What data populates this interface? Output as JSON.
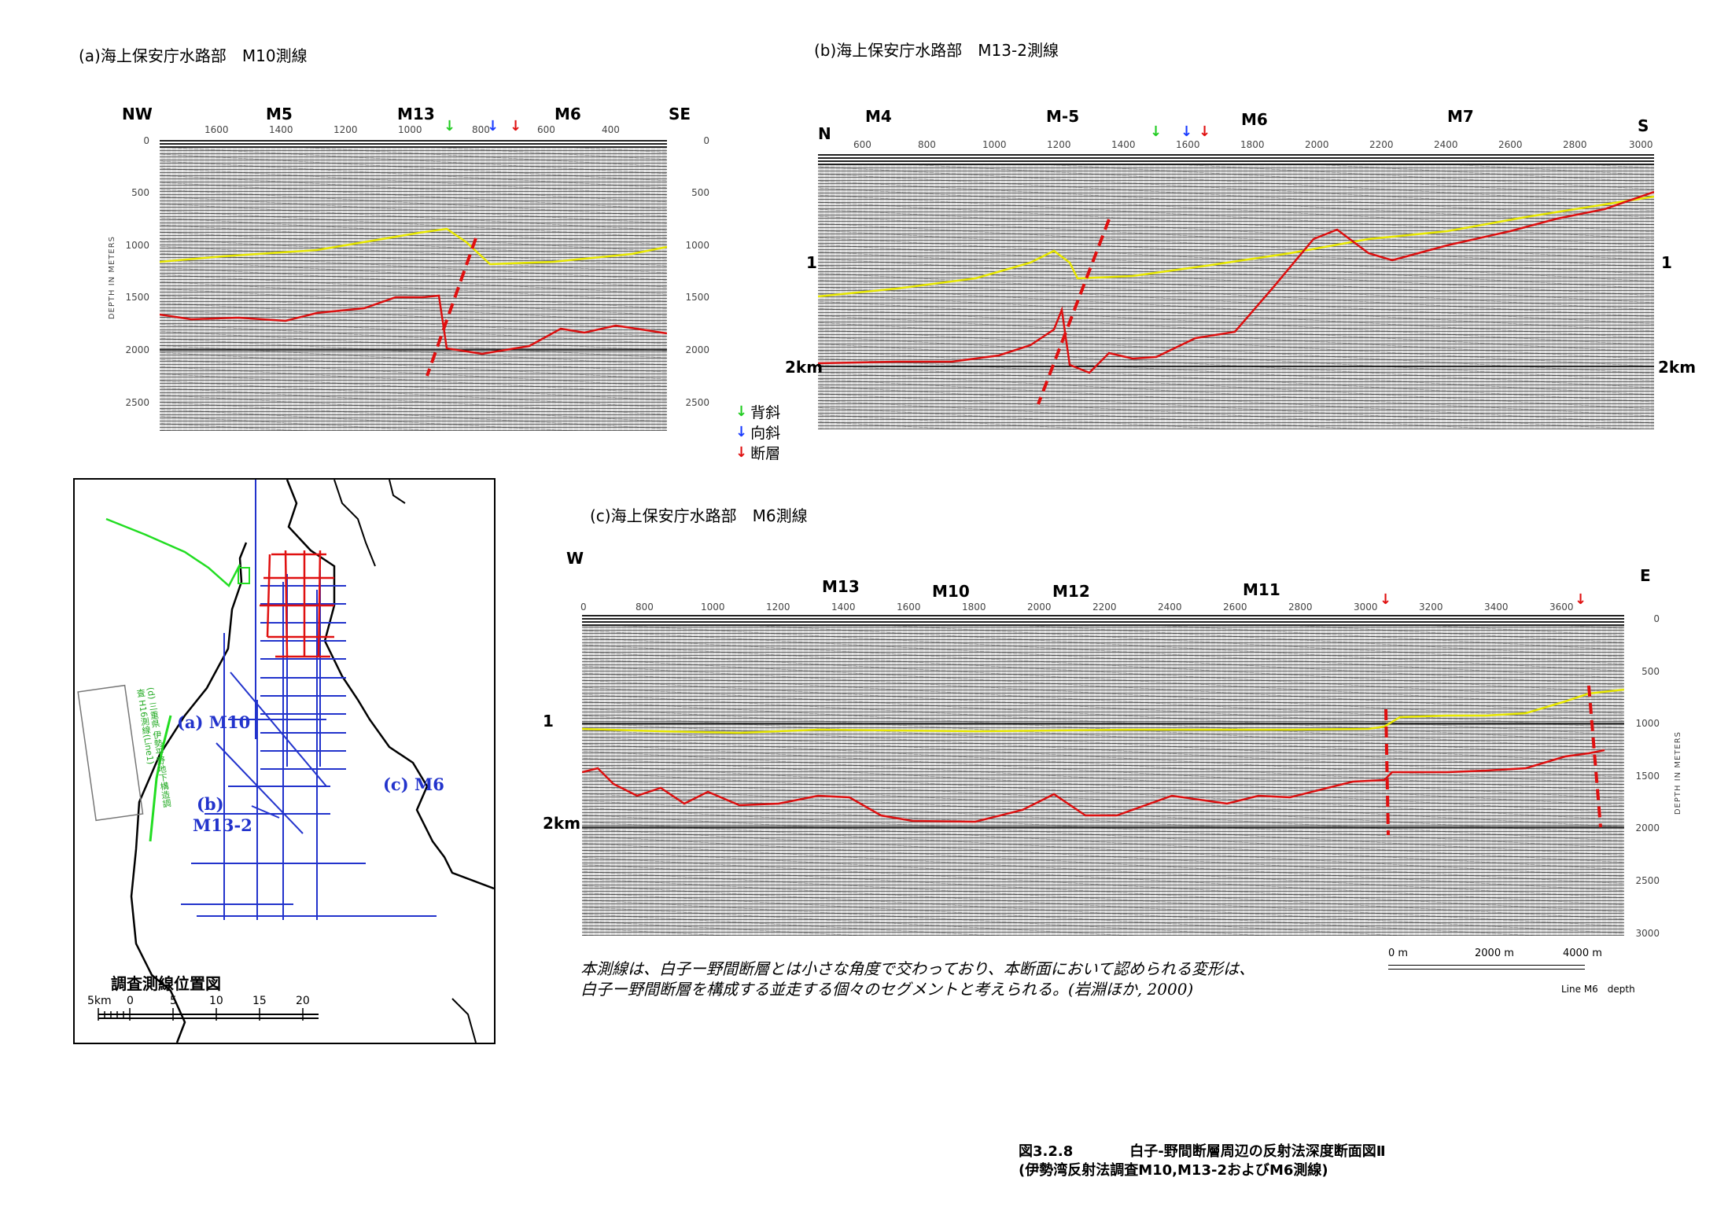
{
  "panel_a": {
    "title": "(a)海上保安庁水路部　M10測線",
    "left_dir": "NW",
    "right_dir": "SE",
    "markers": [
      "M5",
      "M13",
      "M6"
    ],
    "xticks": [
      "1600",
      "1400",
      "1200",
      "1000",
      "800",
      "600",
      "400"
    ],
    "depth_ticks": [
      "0",
      "500",
      "1000",
      "1500",
      "2000",
      "2500"
    ],
    "depth_axis_label": "DEPTH IN METERS"
  },
  "panel_b": {
    "title": "(b)海上保安庁水路部　M13-2測線",
    "left_dir": "N",
    "right_dir": "S",
    "markers": [
      "M4",
      "M-5",
      "M6",
      "M7"
    ],
    "xticks": [
      "600",
      "800",
      "1000",
      "1200",
      "1400",
      "1600",
      "1800",
      "2000",
      "2200",
      "2400",
      "2600",
      "2800",
      "3000"
    ],
    "left_label_1": "1",
    "left_label_2": "2km",
    "right_label_1": "1",
    "right_label_2": "2km"
  },
  "legend": {
    "items": [
      {
        "label": "背斜",
        "color": "#22cc22"
      },
      {
        "label": "向斜",
        "color": "#1a3cff"
      },
      {
        "label": "断層",
        "color": "#e01010"
      }
    ]
  },
  "map": {
    "labels": {
      "a": "(a) M10",
      "b": "(b)",
      "b2": "M13-2",
      "c": "(c) M6",
      "d_box": "(d) 三重県 伊勢平野地下構造調査 H16測線(Line1)"
    },
    "title": "調査測線位置図",
    "scale_ticks": [
      "5km",
      "0",
      "5",
      "10",
      "15",
      "20"
    ],
    "colors": {
      "survey": "#2233cc",
      "fault": "#e01010",
      "d_line": "#22dd22"
    }
  },
  "panel_c": {
    "title": "(c)海上保安庁水路部　M6測線",
    "left_dir": "W",
    "right_dir": "E",
    "markers": [
      "M13",
      "M10",
      "M12",
      "M11"
    ],
    "xticks": [
      "0",
      "800",
      "1000",
      "1200",
      "1400",
      "1600",
      "1800",
      "2000",
      "2200",
      "2400",
      "2600",
      "2800",
      "3000",
      "3200",
      "3400",
      "3600"
    ],
    "depth_ticks": [
      "0",
      "500",
      "1000",
      "1500",
      "2000",
      "2500",
      "3000"
    ],
    "left_label_1": "1",
    "left_label_2": "2km",
    "depth_axis_label": "DEPTH IN METERS",
    "scale_ticks": [
      "0 m",
      "2000 m",
      "4000 m"
    ],
    "line_label": "Line M6　depth"
  },
  "caption": {
    "line1": "本測線は、白子ー野間断層とは小さな角度で交わっており、本断面において認められる変形は、",
    "line2": "白子ー野間断層を構成する並走する個々のセグメントと考えられる。(岩淵ほか, 2000)"
  },
  "figure_caption": {
    "line1": "図3.2.8　　　　白子-野間断層周辺の反射法深度断面図Ⅱ",
    "line2": "(伊勢湾反射法調査M10,M13-2およびM6測線)"
  }
}
